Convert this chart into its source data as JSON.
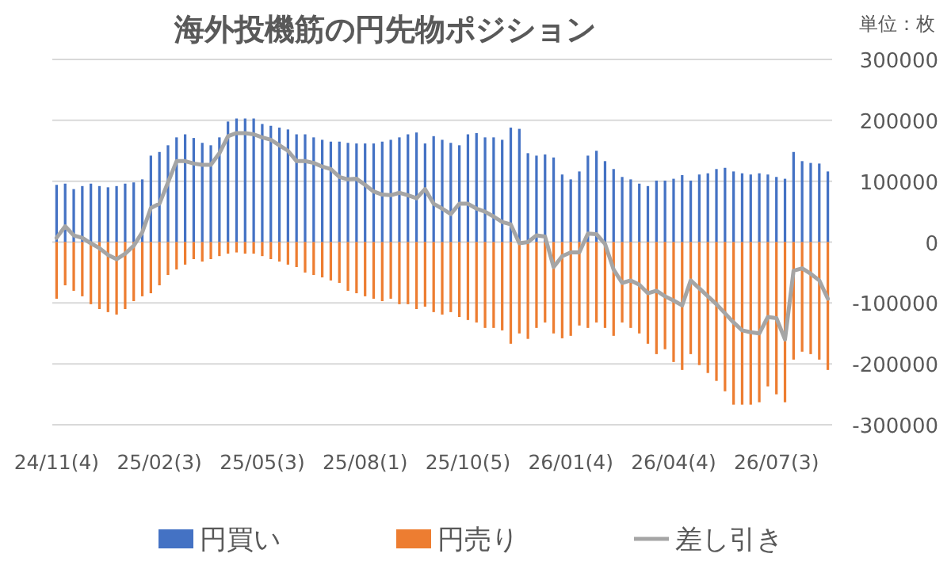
{
  "chart_data": {
    "type": "bar",
    "title": "海外投機筋の円先物ポジション",
    "annotations": [
      "単位：枚"
    ],
    "grid": "y",
    "legend": "bottom",
    "categories": [
      "24/11(4)",
      null,
      null,
      null,
      null,
      null,
      null,
      null,
      null,
      null,
      null,
      null,
      "25/02(3)",
      null,
      null,
      null,
      null,
      null,
      null,
      null,
      null,
      null,
      null,
      null,
      "25/05(3)",
      null,
      null,
      null,
      null,
      null,
      null,
      null,
      null,
      null,
      null,
      null,
      "25/08(1)",
      null,
      null,
      null,
      null,
      null,
      null,
      null,
      null,
      null,
      null,
      null,
      "25/10(5)",
      null,
      null,
      null,
      null,
      null,
      null,
      null,
      null,
      null,
      null,
      null,
      "26/01(4)",
      null,
      null,
      null,
      null,
      null,
      null,
      null,
      null,
      null,
      null,
      null,
      "26/04(4)",
      null,
      null,
      null,
      null,
      null,
      null,
      null,
      null,
      null,
      null,
      null,
      "26/07(3)",
      null,
      null,
      null,
      null,
      null,
      null
    ],
    "series": [
      {
        "name": "円買い",
        "color": "#4472c4",
        "values": [
          94000,
          96000,
          87000,
          92000,
          96000,
          92000,
          90000,
          92000,
          96000,
          98000,
          103000,
          142000,
          148000,
          159000,
          172000,
          177000,
          171000,
          163000,
          159000,
          172000,
          198000,
          203000,
          203000,
          203000,
          194000,
          191000,
          188000,
          185000,
          177000,
          177000,
          172000,
          168000,
          165000,
          165000,
          163000,
          162000,
          162000,
          162000,
          165000,
          168000,
          172000,
          177000,
          180000,
          162000,
          174000,
          168000,
          163000,
          159000,
          177000,
          179000,
          172000,
          172000,
          168000,
          188000,
          186000,
          146000,
          142000,
          144000,
          139000,
          111000,
          103000,
          116000,
          142000,
          150000,
          133000,
          120000,
          107000,
          103000,
          96000,
          92000,
          101000,
          101000,
          104000,
          110000,
          101000,
          111000,
          113000,
          120000,
          122000,
          116000,
          113000,
          111000,
          113000,
          111000,
          107000,
          104000,
          148000,
          133000,
          130000,
          129000,
          116000
        ]
      },
      {
        "name": "円売り",
        "color": "#ed7d31",
        "values": [
          -93000,
          -71000,
          -80000,
          -89000,
          -102000,
          -110000,
          -115000,
          -119000,
          -110000,
          -97000,
          -89000,
          -84000,
          -71000,
          -54000,
          -45000,
          -37000,
          -28000,
          -32000,
          -28000,
          -23000,
          -19000,
          -17000,
          -19000,
          -19000,
          -23000,
          -28000,
          -32000,
          -37000,
          -41000,
          -50000,
          -54000,
          -58000,
          -63000,
          -67000,
          -80000,
          -84000,
          -89000,
          -93000,
          -97000,
          -93000,
          -102000,
          -102000,
          -110000,
          -106000,
          -115000,
          -119000,
          -115000,
          -123000,
          -128000,
          -132000,
          -141000,
          -141000,
          -145000,
          -167000,
          -150000,
          -159000,
          -141000,
          -132000,
          -150000,
          -158000,
          -154000,
          -137000,
          -141000,
          -132000,
          -141000,
          -154000,
          -132000,
          -141000,
          -150000,
          -167000,
          -184000,
          -176000,
          -197000,
          -210000,
          -184000,
          -202000,
          -215000,
          -228000,
          -245000,
          -267000,
          -267000,
          -267000,
          -263000,
          -237000,
          -250000,
          -263000,
          -193000,
          -180000,
          -184000,
          -193000,
          -210000
        ]
      },
      {
        "name": "差し引き",
        "type": "line",
        "color": "#a5a5a5",
        "values": [
          7000,
          26000,
          11000,
          7000,
          -2000,
          -10000,
          -21000,
          -28000,
          -19000,
          -6000,
          16000,
          56000,
          63000,
          98000,
          133000,
          133000,
          129000,
          127000,
          127000,
          146000,
          174000,
          179000,
          179000,
          177000,
          172000,
          168000,
          159000,
          150000,
          133000,
          133000,
          130000,
          124000,
          120000,
          107000,
          103000,
          104000,
          94000,
          83000,
          78000,
          77000,
          81000,
          77000,
          72000,
          87000,
          63000,
          55000,
          46000,
          63000,
          63000,
          55000,
          50000,
          42000,
          33000,
          29000,
          -2000,
          0,
          11000,
          9000,
          -41000,
          -23000,
          -17000,
          -17000,
          14000,
          13000,
          -3000,
          -45000,
          -67000,
          -63000,
          -70000,
          -84000,
          -80000,
          -89000,
          -96000,
          -104000,
          -63000,
          -76000,
          -89000,
          -102000,
          -117000,
          -132000,
          -145000,
          -148000,
          -150000,
          -123000,
          -125000,
          -160000,
          -47000,
          -43000,
          -52000,
          -63000,
          -93000
        ]
      }
    ],
    "ylim": [
      -300000,
      300000
    ],
    "yticks": [
      -300000,
      -200000,
      -100000,
      0,
      100000,
      200000,
      300000
    ]
  }
}
